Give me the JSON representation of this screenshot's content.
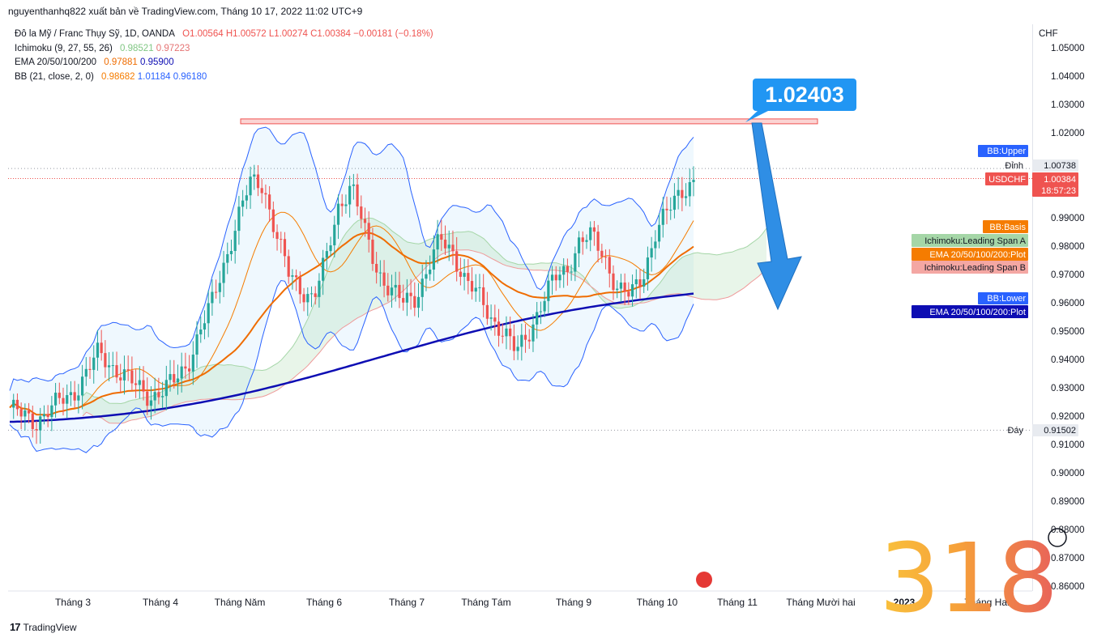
{
  "header": {
    "title": "nguyenthanhq822 xuất bản về TradingView.com, Tháng 10 17, 2022 11:02 UTC+9"
  },
  "legend": {
    "symbol": "Đô la Mỹ / Franc Thụy Sỹ, 1D, OANDA",
    "ohlc": {
      "o": "O1.00564",
      "h": "H1.00572",
      "l": "L1.00274",
      "c": "C1.00384",
      "chg": "−0.00181 (−0.18%)"
    },
    "ichimoku": {
      "label": "Ichimoku (9, 27, 55, 26)",
      "a": "0.98521",
      "b": "0.97223"
    },
    "ema": {
      "label": "EMA 20/50/100/200",
      "v1": "0.97881",
      "v2": "0.95900"
    },
    "bb": {
      "label": "BB (21, close, 2, 0)",
      "basis": "0.98682",
      "upper": "1.01184",
      "lower": "0.96180"
    }
  },
  "annotation": {
    "callout": "1.02403"
  },
  "labels": {
    "bb_upper": "BB:Upper",
    "dinh": "Đỉnh",
    "dinh_value": "1.00738",
    "symbol": "USDCHF",
    "price": "1.00384",
    "countdown": "18:57:23",
    "bb_basis": "BB:Basis",
    "ichi_a": "Ichimoku:Leading Span A",
    "ema_plot_a": "EMA 20/50/100/200:Plot",
    "ichi_b": "Ichimoku:Leading Span B",
    "bb_lower": "BB:Lower",
    "ema_plot_b": "EMA 20/50/100/200:Plot",
    "day": "Đáy",
    "day_value": "0.91502",
    "currency": "CHF"
  },
  "footer": {
    "brand": "TradingView",
    "logo": "17"
  },
  "watermark": "318",
  "colors": {
    "up": "#26a69a",
    "down": "#ef5350",
    "bb": "#2962ff",
    "basis": "#f57c00",
    "ema200": "#0d0db3",
    "ema_orange": "#ef6c00",
    "spanA": "#a5d6a7",
    "spanB": "#ef9a9a",
    "callout": "#2196f3",
    "tagRed": "#ef5350"
  },
  "chart_data": {
    "type": "candlestick",
    "title": "Đô la Mỹ / Franc Thụy Sỹ, 1D, OANDA",
    "yaxis": {
      "unit": "CHF",
      "ticks": [
        "1.05000",
        "1.04000",
        "1.03000",
        "1.02000",
        "0.99000",
        "0.98000",
        "0.97000",
        "0.96000",
        "0.95000",
        "0.94000",
        "0.93000",
        "0.92000",
        "0.91000",
        "0.90000",
        "0.89000",
        "0.88000",
        "0.87000",
        "0.86000"
      ],
      "range": [
        0.855,
        1.06
      ]
    },
    "xaxis": {
      "ticks": [
        "Tháng 3",
        "Tháng 4",
        "Tháng Năm",
        "Tháng 6",
        "Tháng 7",
        "Tháng Tám",
        "Tháng 9",
        "Tháng 10",
        "Tháng 11",
        "Tháng Mười hai",
        "2023",
        "Tháng Hai"
      ]
    },
    "price_path": [
      0.923,
      0.92,
      0.918,
      0.922,
      0.925,
      0.928,
      0.935,
      0.942,
      0.938,
      0.935,
      0.93,
      0.927,
      0.929,
      0.932,
      0.938,
      0.95,
      0.96,
      0.975,
      0.99,
      1.002,
      1.002,
      0.985,
      0.97,
      0.965,
      0.962,
      0.975,
      0.995,
      1.002,
      0.985,
      0.972,
      0.965,
      0.96,
      0.962,
      0.972,
      0.982,
      0.978,
      0.968,
      0.962,
      0.955,
      0.95,
      0.942,
      0.95,
      0.96,
      0.968,
      0.972,
      0.982,
      0.983,
      0.976,
      0.965,
      0.962,
      0.97,
      0.985,
      0.992,
      1.0,
      1.003
    ],
    "resistance_level": 1.02403,
    "last_price": 1.00384,
    "high_marker": 1.00738,
    "low_marker": 0.91502,
    "indicators": [
      "BB (21, close, 2, 0)",
      "EMA 20/50/100/200",
      "Ichimoku (9, 27, 55, 26)"
    ]
  }
}
